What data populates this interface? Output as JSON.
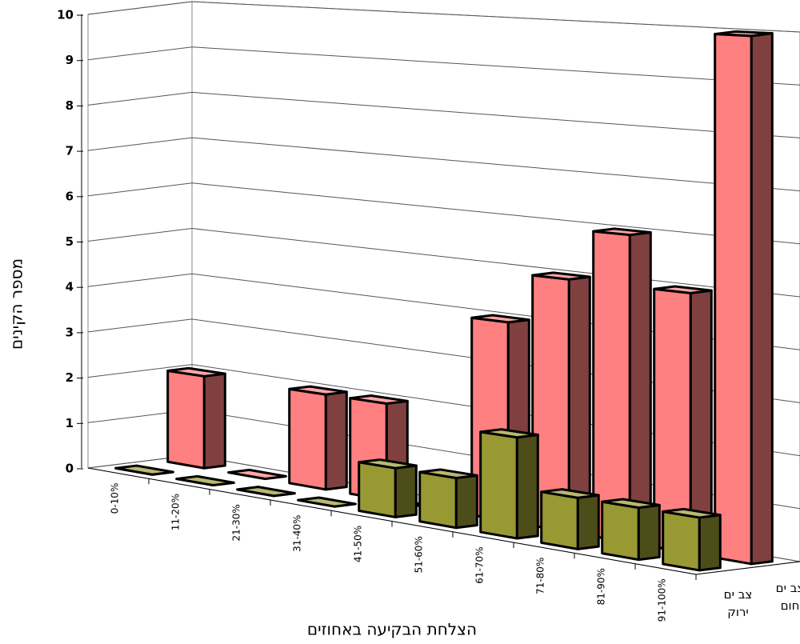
{
  "chart_data": {
    "type": "bar3d",
    "y_axis_title": "מספר הקינים",
    "x_axis_title": "הצלחת הבקיעה באחוזים",
    "categories": [
      "0-10%",
      "11-20%",
      "21-30%",
      "31-40%",
      "41-50%",
      "51-60%",
      "61-70%",
      "71-80%",
      "81-90%",
      "91-100%"
    ],
    "series": [
      {
        "name": "צב ים ירוק",
        "color": "#999933",
        "values": [
          0,
          0,
          0,
          0,
          1,
          1,
          2,
          1,
          1,
          1
        ]
      },
      {
        "name": "צב ים חום",
        "color": "#ff8080",
        "values": [
          2,
          0,
          2,
          2,
          0,
          4,
          5,
          6,
          5,
          10
        ]
      }
    ],
    "ylim": [
      0,
      10
    ],
    "yticks": [
      0,
      1,
      2,
      3,
      4,
      5,
      6,
      7,
      8,
      9,
      10
    ],
    "grid": true
  }
}
